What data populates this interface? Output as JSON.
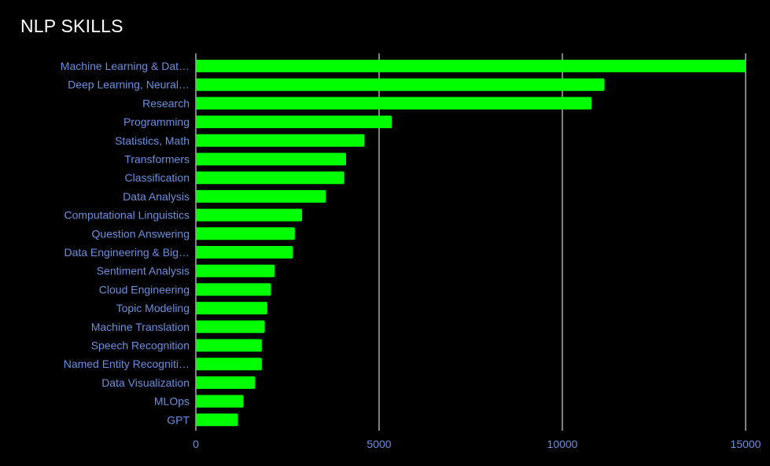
{
  "chart_data": {
    "type": "bar",
    "orientation": "horizontal",
    "title": "NLP SKILLS",
    "xlabel": "",
    "ylabel": "",
    "xlim": [
      0,
      15000
    ],
    "x_ticks": [
      0,
      5000,
      10000,
      15000
    ],
    "x_tick_labels": [
      "0",
      "5000",
      "10000",
      "15000"
    ],
    "grid": "vertical",
    "legend": "none",
    "colors": {
      "background": "#000000",
      "bar": "#00ff00",
      "grid": "#ffffff",
      "label": "#6b8fe0",
      "title": "#ffffff"
    },
    "categories": [
      "Machine Learning & Dat…",
      "Deep Learning, Neural…",
      "Research",
      "Programming",
      "Statistics, Math",
      "Transformers",
      "Classification",
      "Data Analysis",
      "Computational Linguistics",
      "Question Answering",
      "Data Engineering & Big…",
      "Sentiment Analysis",
      "Cloud Engineering",
      "Topic Modeling",
      "Machine Translation",
      "Speech Recognition",
      "Named Entity Recogniti…",
      "Data Visualization",
      "MLOps",
      "GPT"
    ],
    "values": [
      15000,
      11150,
      10800,
      5350,
      4600,
      4100,
      4050,
      3550,
      2900,
      2700,
      2650,
      2150,
      2050,
      1950,
      1880,
      1800,
      1800,
      1620,
      1300,
      1150
    ]
  }
}
